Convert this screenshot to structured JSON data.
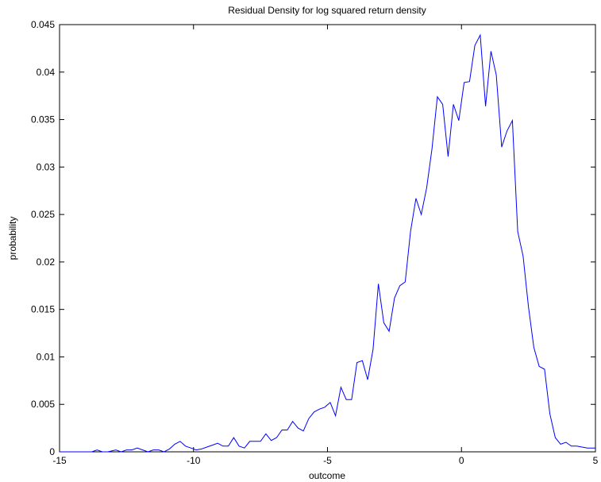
{
  "chart_data": {
    "type": "line",
    "title": "Residual Density for log squared return density",
    "xlabel": "outcome",
    "ylabel": "probability",
    "xlim": [
      -15,
      5
    ],
    "ylim": [
      0,
      0.045
    ],
    "xticks": [
      -15,
      -10,
      -5,
      0,
      5
    ],
    "xtick_labels": [
      "-15",
      "-10",
      "-5",
      "0",
      "5"
    ],
    "yticks": [
      0,
      0.005,
      0.01,
      0.015,
      0.02,
      0.025,
      0.03,
      0.035,
      0.04,
      0.045
    ],
    "ytick_labels": [
      "0",
      "0.005",
      "0.01",
      "0.015",
      "0.02",
      "0.025",
      "0.03",
      "0.035",
      "0.04",
      "0.045"
    ],
    "grid": false,
    "line_color": "#0000ff",
    "series": [
      {
        "x": [
          -15,
          -13.8,
          -13.6,
          -13.4,
          -13.2,
          -12.9,
          -12.7,
          -12.5,
          -12.3,
          -12.1,
          -11.9,
          -11.7,
          -11.5,
          -11.3,
          -11.1,
          -10.9,
          -10.7,
          -10.5,
          -10.3,
          -10.1,
          -9.9,
          -9.7,
          -9.5,
          -9.3,
          -9.1,
          -8.9,
          -8.7,
          -8.5,
          -8.3,
          -8.1,
          -7.9,
          -7.7,
          -7.5,
          -7.3,
          -7.1,
          -6.9,
          -6.7,
          -6.5,
          -6.3,
          -6.1,
          -5.9,
          -5.7,
          -5.5,
          -5.3,
          -5.1,
          -4.9,
          -4.7,
          -4.5,
          -4.3,
          -4.1,
          -3.9,
          -3.7,
          -3.5,
          -3.3,
          -3.1,
          -2.9,
          -2.7,
          -2.5,
          -2.3,
          -2.1,
          -1.9,
          -1.7,
          -1.5,
          -1.3,
          -1.1,
          -0.9,
          -0.7,
          -0.5,
          -0.3,
          -0.1,
          0.1,
          0.3,
          0.5,
          0.7,
          0.9,
          1.1,
          1.3,
          1.5,
          1.7,
          1.9,
          2.1,
          2.3,
          2.5,
          2.7,
          2.9,
          3.1,
          3.3,
          3.5,
          3.7,
          3.9,
          4.1,
          4.3,
          4.5,
          4.7,
          4.9,
          5.0
        ],
        "y": [
          0,
          0,
          0.0002,
          0,
          0,
          0.0002,
          0,
          0.0002,
          0.0002,
          0.0004,
          0.0002,
          0,
          0.0002,
          0.0002,
          0,
          0.0003,
          0.0008,
          0.0011,
          0.0006,
          0.0004,
          0.0002,
          0.0003,
          0.0005,
          0.0007,
          0.0009,
          0.0006,
          0.0006,
          0.0015,
          0.0006,
          0.0004,
          0.0011,
          0.0011,
          0.0011,
          0.0019,
          0.0012,
          0.0015,
          0.0023,
          0.0023,
          0.0032,
          0.0025,
          0.0022,
          0.0035,
          0.0042,
          0.0045,
          0.0047,
          0.0052,
          0.0038,
          0.0068,
          0.0055,
          0.0055,
          0.0094,
          0.0096,
          0.0076,
          0.0108,
          0.0177,
          0.0136,
          0.0127,
          0.0162,
          0.0175,
          0.0179,
          0.0232,
          0.0267,
          0.025,
          0.0278,
          0.0319,
          0.0374,
          0.0366,
          0.0311,
          0.0366,
          0.0349,
          0.0389,
          0.039,
          0.0428,
          0.0439,
          0.0364,
          0.0422,
          0.0397,
          0.0321,
          0.0338,
          0.0349,
          0.0232,
          0.0206,
          0.0153,
          0.011,
          0.009,
          0.0087,
          0.004,
          0.0015,
          0.0008,
          0.001,
          0.0006,
          0.0006,
          0.0005,
          0.0004,
          0.0004,
          0.0004
        ]
      }
    ]
  }
}
